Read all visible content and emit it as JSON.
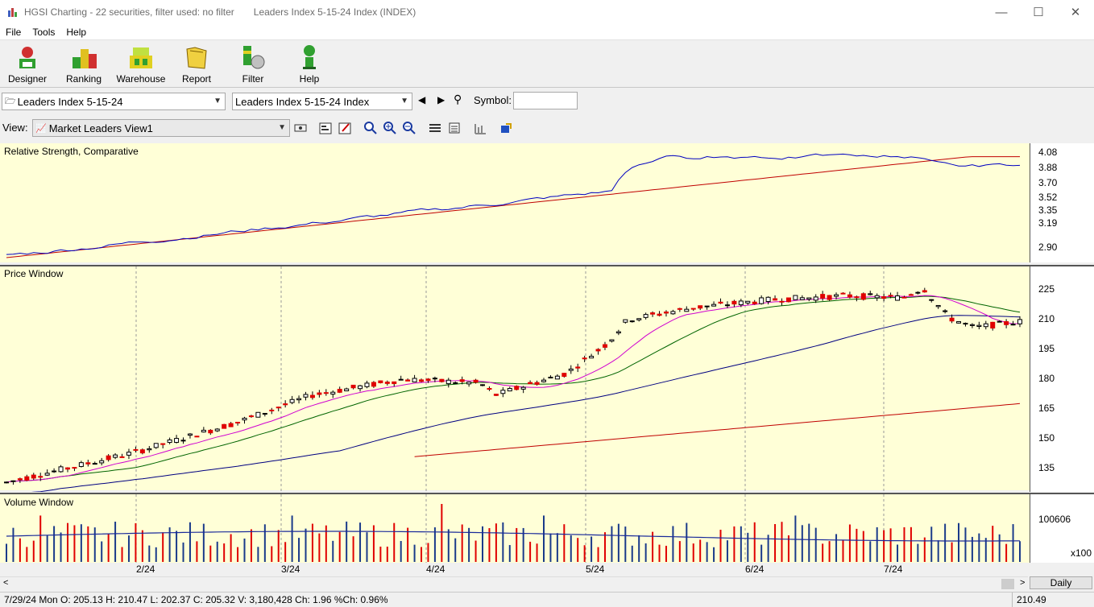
{
  "window": {
    "title": "HGSI Charting - 22 securities, filter used: no filter",
    "doc_title": "Leaders Index 5-15-24 Index (INDEX)"
  },
  "menu": [
    "File",
    "Tools",
    "Help"
  ],
  "toolbar": [
    {
      "label": "Designer",
      "icon": "designer-icon"
    },
    {
      "label": "Ranking",
      "icon": "ranking-icon"
    },
    {
      "label": "Warehouse",
      "icon": "warehouse-icon"
    },
    {
      "label": "Report",
      "icon": "report-icon"
    },
    {
      "label": "Filter",
      "icon": "filter-icon"
    },
    {
      "label": "Help",
      "icon": "help-icon"
    }
  ],
  "selectors": {
    "list": "Leaders Index 5-15-24",
    "security": "Leaders Index 5-15-24 Index",
    "symbol_label": "Symbol:",
    "symbol_value": "",
    "view_label": "View:",
    "view": "Market Leaders View1"
  },
  "panels": {
    "rs": "Relative Strength, Comparative",
    "price": "Price Window",
    "volume": "Volume Window"
  },
  "axes": {
    "rs_ticks": [
      "4.08",
      "3.88",
      "3.70",
      "3.52",
      "3.35",
      "3.19",
      "2.90"
    ],
    "price_ticks": [
      "225",
      "210",
      "195",
      "180",
      "165",
      "150",
      "135"
    ],
    "volume_ticks": [
      "100606"
    ],
    "volume_mult": "x100",
    "dates": [
      "2/24",
      "3/24",
      "4/24",
      "5/24",
      "6/24",
      "7/24"
    ]
  },
  "status": {
    "text": "7/29/24 Mon O: 205.13 H: 210.47 L: 202.37 C: 205.32 V: 3,180,428 Ch: 1.96 %Ch: 0.96%",
    "value": "210.49",
    "period": "Daily"
  },
  "colors": {
    "up": "#ffffff",
    "down": "#e00000",
    "rs_line": "#0000c0",
    "ma_red": "#c00000",
    "ma_blue": "#000080",
    "ma_green": "#006400",
    "ma_magenta": "#d000d0",
    "panel_bg": "#ffffd7"
  },
  "chart_data": {
    "type": "candlestick",
    "price_ticks": [
      135,
      150,
      165,
      180,
      195,
      210,
      225
    ],
    "rs_range": [
      2.8,
      4.12
    ],
    "last": {
      "open": 205.13,
      "high": 210.47,
      "low": 202.37,
      "close": 205.32
    }
  }
}
